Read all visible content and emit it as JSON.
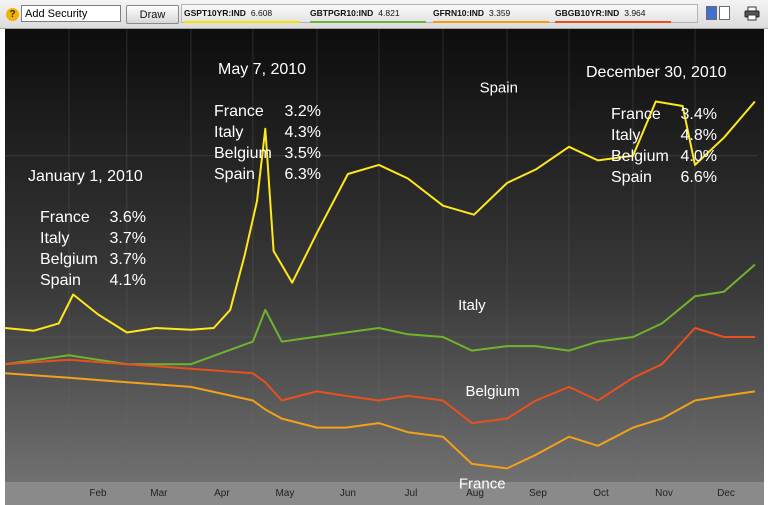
{
  "toolbar": {
    "help_icon": "?",
    "add_security_value": "Add Security",
    "draw_label": "Draw",
    "legend": [
      {
        "symbol": "GSPT10YR:IND",
        "value": "6.608",
        "color": "#f2e600"
      },
      {
        "symbol": "GBTPGR10:IND",
        "value": "4.821",
        "color": "#6db33f"
      },
      {
        "symbol": "GFRN10:IND",
        "value": "3.359",
        "color": "#f39c12"
      },
      {
        "symbol": "GBGB10YR:IND",
        "value": "3.964",
        "color": "#e8501e"
      }
    ],
    "icons": [
      "help-icon",
      "view-single-icon",
      "view-split-icon",
      "print-icon"
    ]
  },
  "annotations": [
    {
      "title": "January 1, 2010",
      "rows": [
        [
          "France",
          "3.6%"
        ],
        [
          "Italy",
          "3.7%"
        ],
        [
          "Belgium",
          "3.7%"
        ],
        [
          "Spain",
          "4.1%"
        ]
      ]
    },
    {
      "title": "May 7, 2010",
      "rows": [
        [
          "France",
          "3.2%"
        ],
        [
          "Italy",
          "4.3%"
        ],
        [
          "Belgium",
          "3.5%"
        ],
        [
          "Spain",
          "6.3%"
        ]
      ]
    },
    {
      "title": "December 30, 2010",
      "rows": [
        [
          "France",
          "3.4%"
        ],
        [
          "Italy",
          "4.8%"
        ],
        [
          "Belgium",
          "4.0%"
        ],
        [
          "Spain",
          "6.6%"
        ]
      ]
    }
  ],
  "chart_data": {
    "type": "line",
    "title": "",
    "xlabel": "",
    "ylabel": "",
    "x_tick_labels": [
      "Feb",
      "Mar",
      "Apr",
      "May",
      "Jun",
      "Jul",
      "Aug",
      "Sep",
      "Oct",
      "Nov",
      "Dec"
    ],
    "xlim": [
      "2010-01-01",
      "2010-12-31"
    ],
    "ylim": [
      2.4,
      7.4
    ],
    "grid": true,
    "series": [
      {
        "name": "Spain",
        "color": "#ffe81a",
        "x": [
          "2010-01-01",
          "2010-01-15",
          "2010-01-27",
          "2010-02-03",
          "2010-02-15",
          "2010-03-01",
          "2010-03-15",
          "2010-04-01",
          "2010-04-12",
          "2010-04-20",
          "2010-04-27",
          "2010-05-03",
          "2010-05-07",
          "2010-05-11",
          "2010-05-20",
          "2010-06-01",
          "2010-06-16",
          "2010-07-01",
          "2010-07-15",
          "2010-08-01",
          "2010-08-16",
          "2010-09-01",
          "2010-09-15",
          "2010-10-01",
          "2010-10-15",
          "2010-11-01",
          "2010-11-12",
          "2010-11-25",
          "2010-12-01",
          "2010-12-15",
          "2010-12-30"
        ],
        "values": [
          4.1,
          4.07,
          4.15,
          4.47,
          4.25,
          4.05,
          4.1,
          4.08,
          4.1,
          4.3,
          4.9,
          5.5,
          6.3,
          4.95,
          4.6,
          5.15,
          5.8,
          5.9,
          5.75,
          5.45,
          5.35,
          5.7,
          5.85,
          6.1,
          5.95,
          6.0,
          6.6,
          6.55,
          5.9,
          6.2,
          6.6
        ]
      },
      {
        "name": "Italy",
        "color": "#6fb52b",
        "x": [
          "2010-01-01",
          "2010-02-01",
          "2010-03-01",
          "2010-04-01",
          "2010-05-01",
          "2010-05-07",
          "2010-05-15",
          "2010-06-15",
          "2010-07-01",
          "2010-07-15",
          "2010-08-01",
          "2010-08-15",
          "2010-09-01",
          "2010-09-15",
          "2010-10-01",
          "2010-10-15",
          "2010-11-01",
          "2010-11-15",
          "2010-12-01",
          "2010-12-15",
          "2010-12-30"
        ],
        "values": [
          3.7,
          3.8,
          3.7,
          3.7,
          3.95,
          4.3,
          3.95,
          4.05,
          4.1,
          4.03,
          4.0,
          3.85,
          3.9,
          3.9,
          3.85,
          3.95,
          4.0,
          4.15,
          4.45,
          4.5,
          4.8
        ]
      },
      {
        "name": "Belgium",
        "color": "#e8501e",
        "x": [
          "2010-01-01",
          "2010-02-01",
          "2010-03-01",
          "2010-04-01",
          "2010-05-01",
          "2010-05-07",
          "2010-05-15",
          "2010-06-01",
          "2010-06-15",
          "2010-07-01",
          "2010-07-15",
          "2010-08-01",
          "2010-08-15",
          "2010-09-01",
          "2010-09-15",
          "2010-10-01",
          "2010-10-15",
          "2010-11-01",
          "2010-11-15",
          "2010-12-01",
          "2010-12-15",
          "2010-12-30"
        ],
        "values": [
          3.7,
          3.75,
          3.7,
          3.65,
          3.6,
          3.5,
          3.3,
          3.4,
          3.35,
          3.3,
          3.35,
          3.3,
          3.05,
          3.1,
          3.3,
          3.45,
          3.3,
          3.55,
          3.7,
          4.1,
          4.0,
          4.0
        ]
      },
      {
        "name": "France",
        "color": "#f2a11a",
        "x": [
          "2010-01-01",
          "2010-02-01",
          "2010-03-01",
          "2010-04-01",
          "2010-05-01",
          "2010-05-07",
          "2010-05-15",
          "2010-06-01",
          "2010-06-15",
          "2010-07-01",
          "2010-07-15",
          "2010-08-01",
          "2010-08-15",
          "2010-09-01",
          "2010-09-15",
          "2010-10-01",
          "2010-10-15",
          "2010-11-01",
          "2010-11-15",
          "2010-12-01",
          "2010-12-15",
          "2010-12-30"
        ],
        "values": [
          3.6,
          3.55,
          3.5,
          3.45,
          3.3,
          3.2,
          3.1,
          3.0,
          3.0,
          3.05,
          2.95,
          2.9,
          2.6,
          2.55,
          2.7,
          2.9,
          2.8,
          3.0,
          3.1,
          3.3,
          3.35,
          3.4
        ]
      }
    ],
    "series_labels": [
      {
        "text": "Spain",
        "x": "2010-08-28",
        "y": 6.7
      },
      {
        "text": "Italy",
        "x": "2010-08-15",
        "y": 4.3
      },
      {
        "text": "Belgium",
        "x": "2010-08-25",
        "y": 3.35
      },
      {
        "text": "France",
        "x": "2010-08-20",
        "y": 2.33
      }
    ]
  }
}
